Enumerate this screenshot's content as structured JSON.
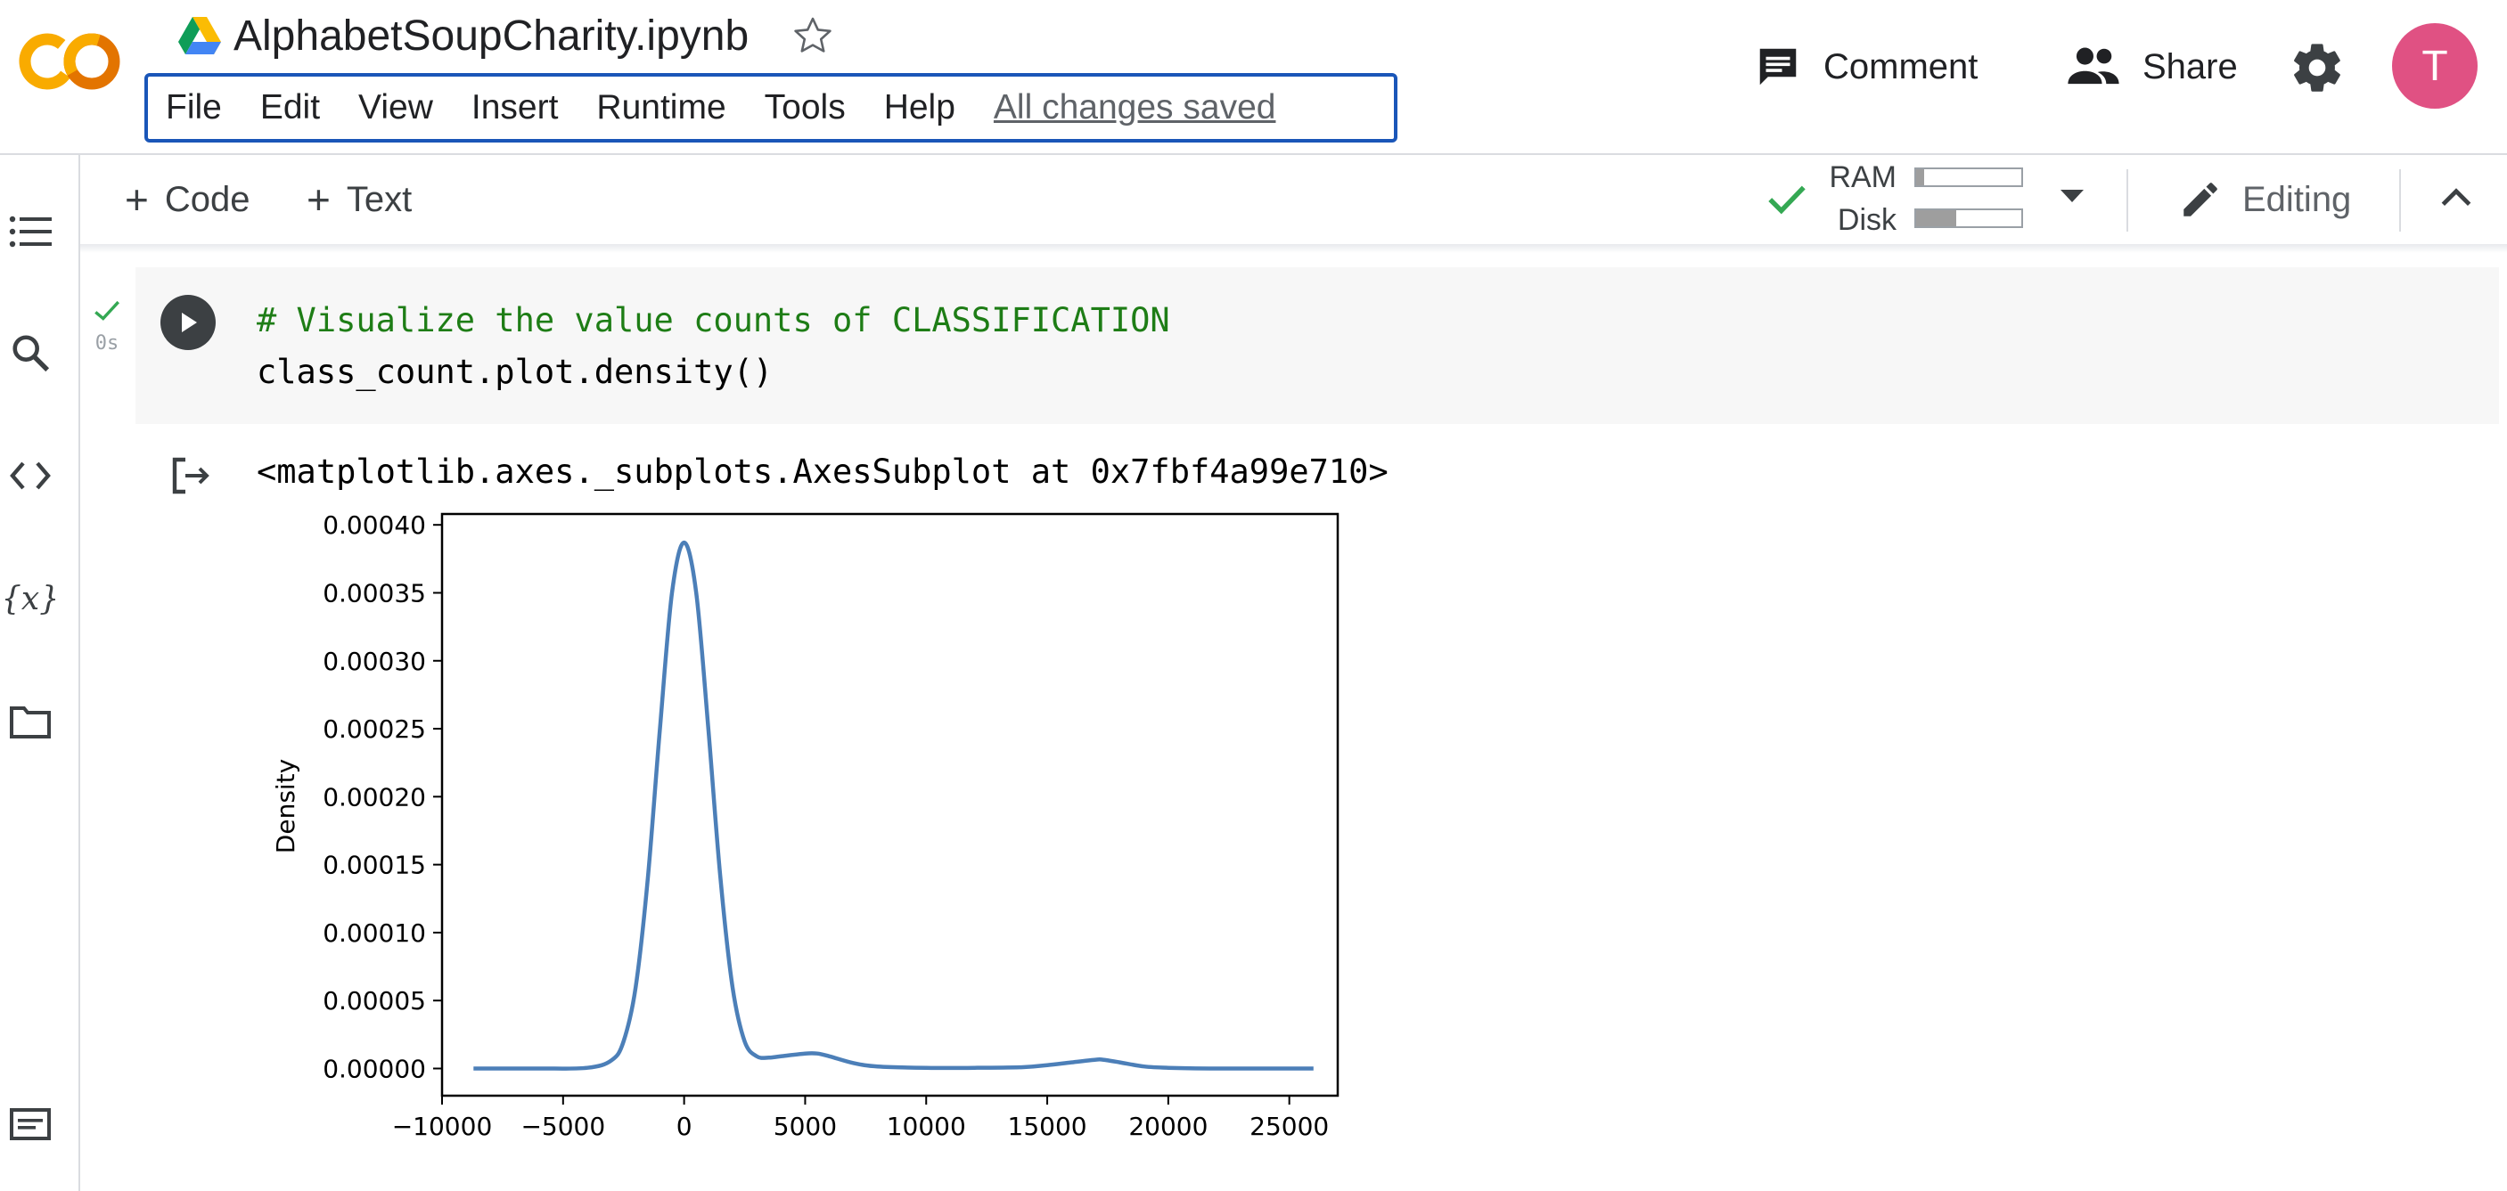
{
  "header": {
    "notebook_title": "AlphabetSoupCharity.ipynb",
    "menu": [
      "File",
      "Edit",
      "View",
      "Insert",
      "Runtime",
      "Tools",
      "Help"
    ],
    "save_status": "All changes saved",
    "comment_label": "Comment",
    "share_label": "Share",
    "avatar_initial": "T",
    "colors": {
      "menu_border": "#1a56b8",
      "avatar": "#e05183",
      "logo_orange": "#f9ab00",
      "logo_dark_orange": "#e37400"
    }
  },
  "sidebar": {
    "icons": [
      "table-of-contents-icon",
      "search-icon",
      "code-snippets-icon",
      "variables-icon",
      "files-icon",
      "terminal-icon"
    ]
  },
  "toolbar": {
    "add_code_label": "Code",
    "add_text_label": "Text",
    "ram_label": "RAM",
    "disk_label": "Disk",
    "ram_usage": 0.08,
    "disk_usage": 0.38,
    "editing_label": "Editing"
  },
  "cell": {
    "exec_time": "0s",
    "code_lines": [
      "# Visualize the value counts of CLASSIFICATION",
      "class_count.plot.density()"
    ],
    "output_text": "<matplotlib.axes._subplots.AxesSubplot at 0x7fbf4a99e710>"
  },
  "chart_data": {
    "type": "line",
    "title": "",
    "xlabel": "",
    "ylabel": "Density",
    "xlim": [
      -10000,
      27000
    ],
    "ylim": [
      -2e-05,
      0.000408
    ],
    "xticks": [
      -10000,
      -5000,
      0,
      5000,
      10000,
      15000,
      20000,
      25000
    ],
    "xtick_labels": [
      "−10000",
      "−5000",
      "0",
      "5000",
      "10000",
      "15000",
      "20000",
      "25000"
    ],
    "yticks": [
      0,
      5e-05,
      0.0001,
      0.00015,
      0.0002,
      0.00025,
      0.0003,
      0.00035,
      0.0004
    ],
    "ytick_labels": [
      "0.00000",
      "0.00005",
      "0.00010",
      "0.00015",
      "0.00020",
      "0.00025",
      "0.00030",
      "0.00035",
      "0.00040"
    ],
    "grid": false,
    "line_color": "#4c7fb8",
    "series": [
      {
        "x": [
          -8700,
          -6000,
          -4000,
          -3000,
          -2500,
          -2000,
          -1500,
          -1000,
          -500,
          0,
          500,
          1000,
          1500,
          2000,
          2500,
          3000,
          3500,
          4000,
          5000,
          5500,
          6000,
          7000,
          8000,
          10000,
          12000,
          14000,
          15000,
          16000,
          17000,
          17300,
          18000,
          19000,
          20000,
          22000,
          24000,
          26000
        ],
        "y": [
          0,
          0,
          5e-07,
          6e-06,
          2e-05,
          6e-05,
          0.00014,
          0.00025,
          0.00035,
          0.000387,
          0.00035,
          0.00025,
          0.00014,
          6e-05,
          2e-05,
          9e-06,
          8e-06,
          9e-06,
          1.1e-05,
          1.1e-05,
          9e-06,
          4e-06,
          1.5e-06,
          5e-07,
          5e-07,
          1e-06,
          2.5e-06,
          4.5e-06,
          6.5e-06,
          6.5e-06,
          4.5e-06,
          1.5e-06,
          5e-07,
          0,
          0,
          0
        ]
      }
    ]
  }
}
